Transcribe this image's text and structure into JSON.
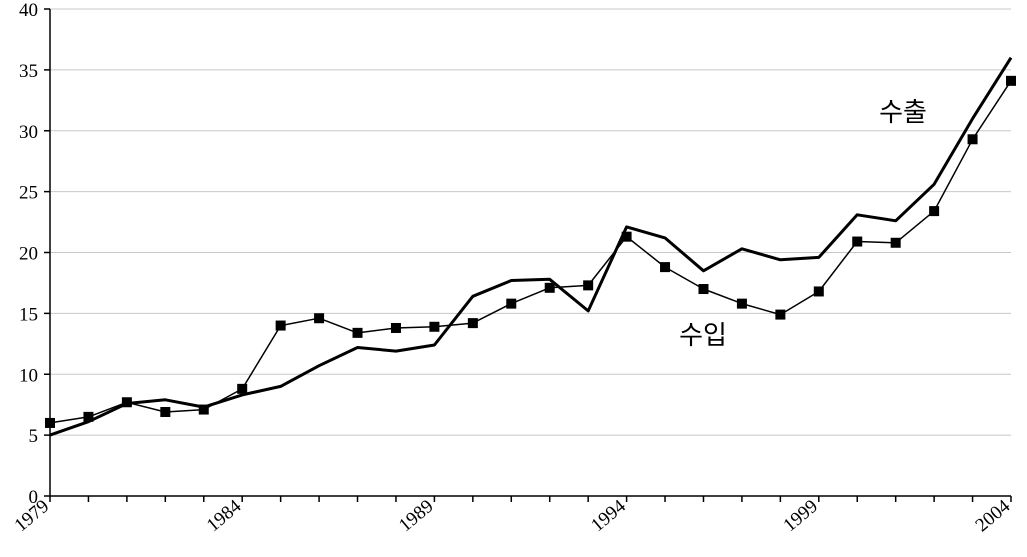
{
  "chart_data": {
    "type": "line",
    "title": "",
    "xlabel": "",
    "ylabel": "",
    "xlim": [
      1979,
      2004
    ],
    "ylim": [
      0,
      40
    ],
    "y_ticks": [
      0,
      5,
      10,
      15,
      20,
      25,
      30,
      35,
      40
    ],
    "x_tick_labels": [
      "1979",
      "1984",
      "1989",
      "1994",
      "1999",
      "2004"
    ],
    "grid": "horizontal",
    "legend": "none",
    "series": [
      {
        "name": "수출",
        "color": "#000000",
        "marker": "none",
        "label_position": "top-right",
        "x": [
          1979,
          1980,
          1981,
          1982,
          1983,
          1984,
          1985,
          1986,
          1987,
          1988,
          1989,
          1990,
          1991,
          1992,
          1993,
          1994,
          1995,
          1996,
          1997,
          1998,
          1999,
          2000,
          2001,
          2002,
          2003,
          2004
        ],
        "values": [
          5.0,
          6.1,
          7.6,
          7.9,
          7.3,
          8.3,
          9.0,
          10.7,
          12.2,
          11.9,
          12.4,
          16.4,
          17.7,
          17.8,
          15.2,
          22.1,
          21.2,
          18.5,
          20.3,
          19.4,
          19.6,
          23.1,
          22.6,
          25.6,
          31.0,
          36.0
        ]
      },
      {
        "name": "수입",
        "color": "#000000",
        "marker": "square",
        "label_position": "middle",
        "x": [
          1979,
          1980,
          1981,
          1982,
          1983,
          1984,
          1985,
          1986,
          1987,
          1988,
          1989,
          1990,
          1991,
          1992,
          1993,
          1994,
          1995,
          1996,
          1997,
          1998,
          1999,
          2000,
          2001,
          2002,
          2003,
          2004
        ],
        "values": [
          6.0,
          6.5,
          7.7,
          6.9,
          7.1,
          8.8,
          14.0,
          14.6,
          13.4,
          13.8,
          13.9,
          14.2,
          15.8,
          17.1,
          17.3,
          21.3,
          18.8,
          17.0,
          15.8,
          14.9,
          16.8,
          20.9,
          20.8,
          23.4,
          29.3,
          34.1
        ]
      }
    ]
  }
}
